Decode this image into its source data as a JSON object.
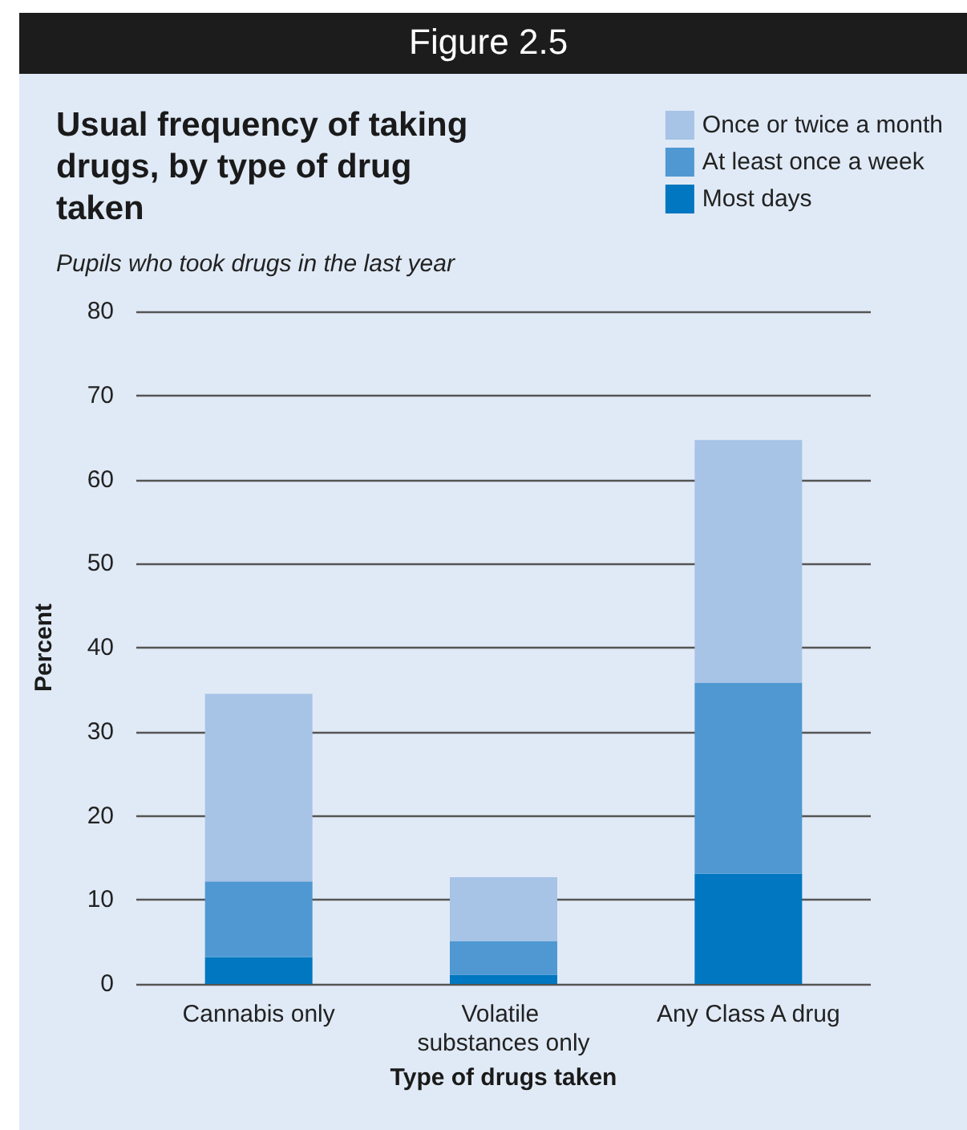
{
  "chart_data": {
    "type": "bar",
    "title": "Usual frequency of taking drugs, by type of drug taken",
    "subtitle": "Pupils who took drugs in the last year",
    "annotations": [
      "Figure 2.5"
    ],
    "xlabel": "Type of drugs taken",
    "ylabel": "Percent",
    "categories": [
      "Cannabis only",
      "Volatile substances only",
      "Any Class A drug"
    ],
    "stacked": true,
    "series": [
      {
        "name": "Most days",
        "color": "#0077c0",
        "values": [
          3.2,
          1.1,
          13.1
        ]
      },
      {
        "name": "At least once a week",
        "color": "#4f98d2",
        "values": [
          9.0,
          4.0,
          22.7
        ]
      },
      {
        "name": "Once or twice a month",
        "color": "#a7c3e6",
        "values": [
          22.3,
          7.6,
          28.9
        ]
      }
    ],
    "ylim": [
      0,
      80
    ],
    "yticks": [
      0,
      10,
      20,
      30,
      40,
      50,
      60,
      70,
      80
    ],
    "grid": "y",
    "legend": "top right"
  }
}
